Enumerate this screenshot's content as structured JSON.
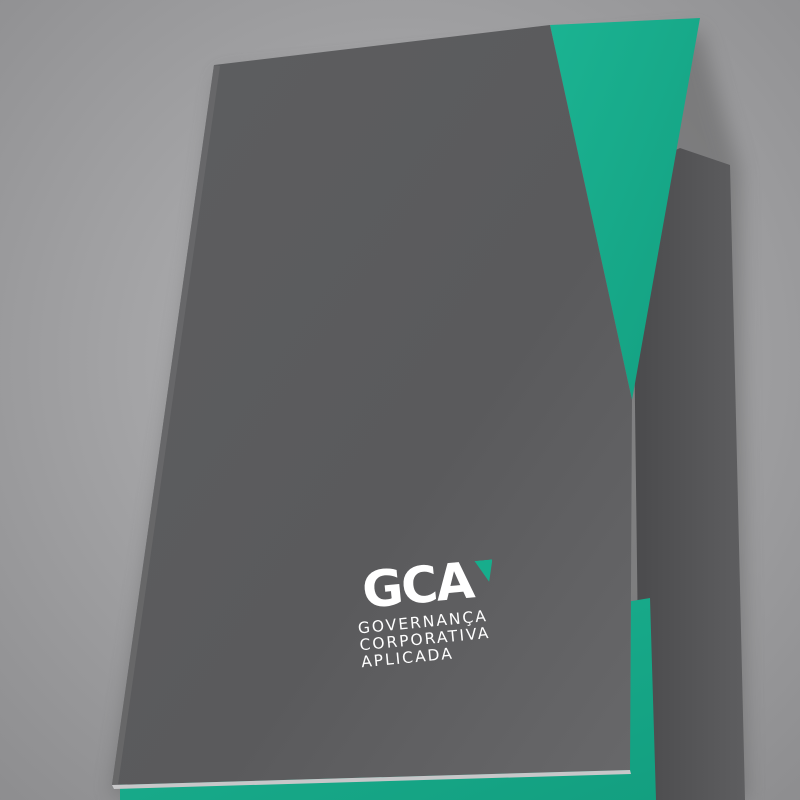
{
  "logo": {
    "mark": "GCA",
    "tagline": [
      "GOVERNANÇA",
      "CORPORATIVA",
      "APLICADA"
    ]
  },
  "colors": {
    "background": "#9c9c9e",
    "folder_gray": "#5b5b5d",
    "accent_green": "#17ad8c",
    "text": "#ffffff"
  }
}
